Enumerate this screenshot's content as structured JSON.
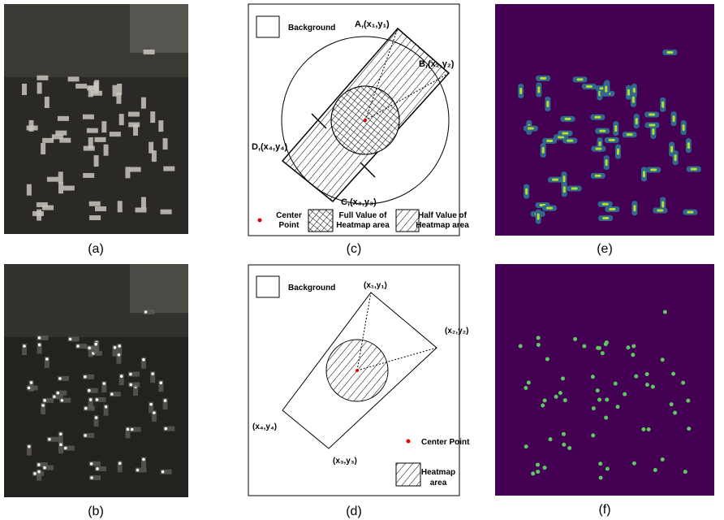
{
  "panels": [
    {
      "label": "(a)"
    },
    {
      "label": "(b)"
    },
    {
      "label": "(c)"
    },
    {
      "label": "(d)"
    },
    {
      "label": "(e)"
    },
    {
      "label": "(f)"
    }
  ],
  "diagram_c": {
    "background": "Background",
    "corner_a": "A,(x₁,y₁)",
    "corner_b": "B,(x₂,y₂)",
    "corner_c": "C,(x₃,y₃)",
    "corner_d": "D,(x₄,y₄)",
    "center_point_line1": "Center",
    "center_point_line2": "Point",
    "full_value_line1": "Full Value of",
    "full_value_line2": "Heatmap area",
    "half_value_line1": "Half Value of",
    "half_value_line2": "Heatmap area"
  },
  "diagram_d": {
    "background": "Background",
    "corner_1": "(x₁,y₁)",
    "corner_2": "(x₂,y₂)",
    "corner_3": "(x₃,y₃)",
    "corner_4": "(x₄,y₄)",
    "center_point": "Center Point",
    "heatmap_line1": "Heatmap",
    "heatmap_line2": "area"
  }
}
